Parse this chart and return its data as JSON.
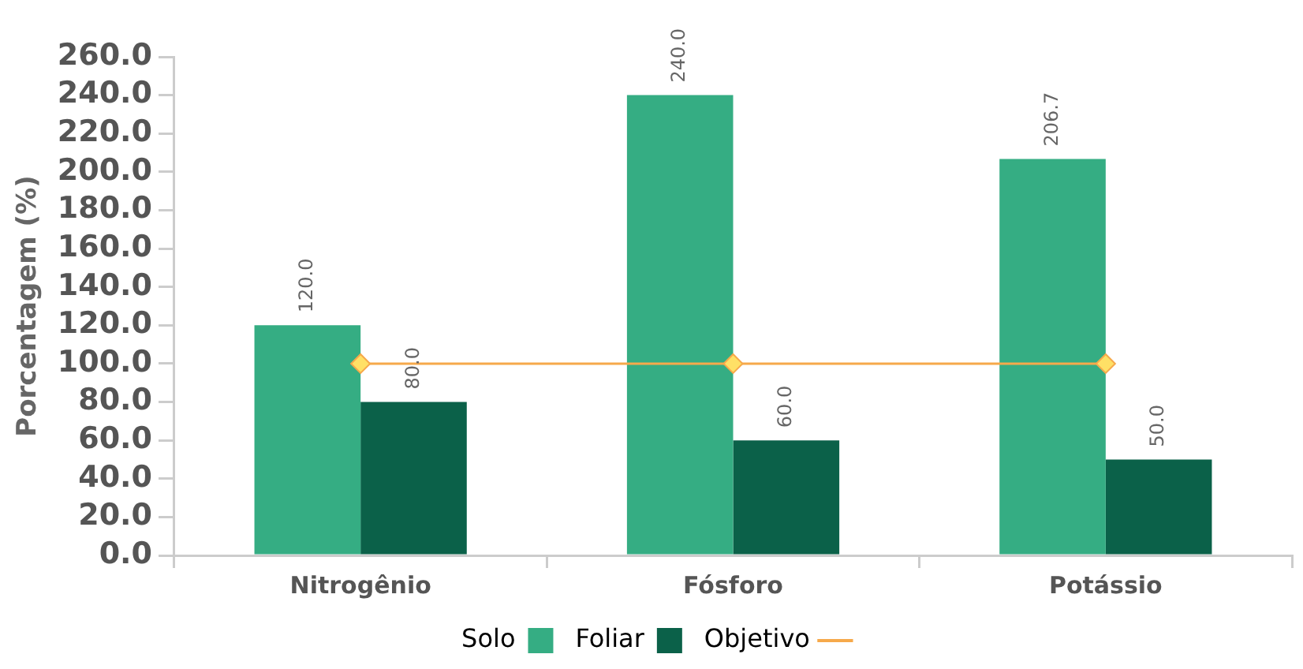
{
  "chart_data": {
    "type": "bar",
    "ylabel": "Porcentagem (%)",
    "categories": [
      "Nitrogênio",
      "Fósforo",
      "Potássio"
    ],
    "series": [
      {
        "name": "Solo",
        "color": "#35ad83",
        "values": [
          120.0,
          240.0,
          206.7
        ],
        "value_labels": [
          "120.0",
          "240.0",
          "206.7"
        ]
      },
      {
        "name": "Foliar",
        "color": "#0b6149",
        "values": [
          80.0,
          60.0,
          50.0
        ],
        "value_labels": [
          "80.0",
          "60.0",
          "50.0"
        ]
      },
      {
        "name": "Objetivo",
        "type": "line",
        "color": "#f6a94b",
        "values": [
          100,
          100,
          100
        ],
        "marker": "diamond"
      }
    ],
    "ylim": [
      0,
      260
    ],
    "yticks": [
      {
        "value": 0,
        "label": "0.0"
      },
      {
        "value": 20,
        "label": "20.0"
      },
      {
        "value": 40,
        "label": "40.0"
      },
      {
        "value": 60,
        "label": "60.0"
      },
      {
        "value": 80,
        "label": "80.0"
      },
      {
        "value": 100,
        "label": "100.0"
      },
      {
        "value": 120,
        "label": "120.0"
      },
      {
        "value": 140,
        "label": "140.0"
      },
      {
        "value": 160,
        "label": "160.0"
      },
      {
        "value": 180,
        "label": "180.0"
      },
      {
        "value": 200,
        "label": "200.0"
      },
      {
        "value": 220,
        "label": "220.0"
      },
      {
        "value": 240,
        "label": "240.0"
      },
      {
        "value": 260,
        "label": "260.0"
      }
    ],
    "grid": false,
    "legend": "bottom"
  }
}
